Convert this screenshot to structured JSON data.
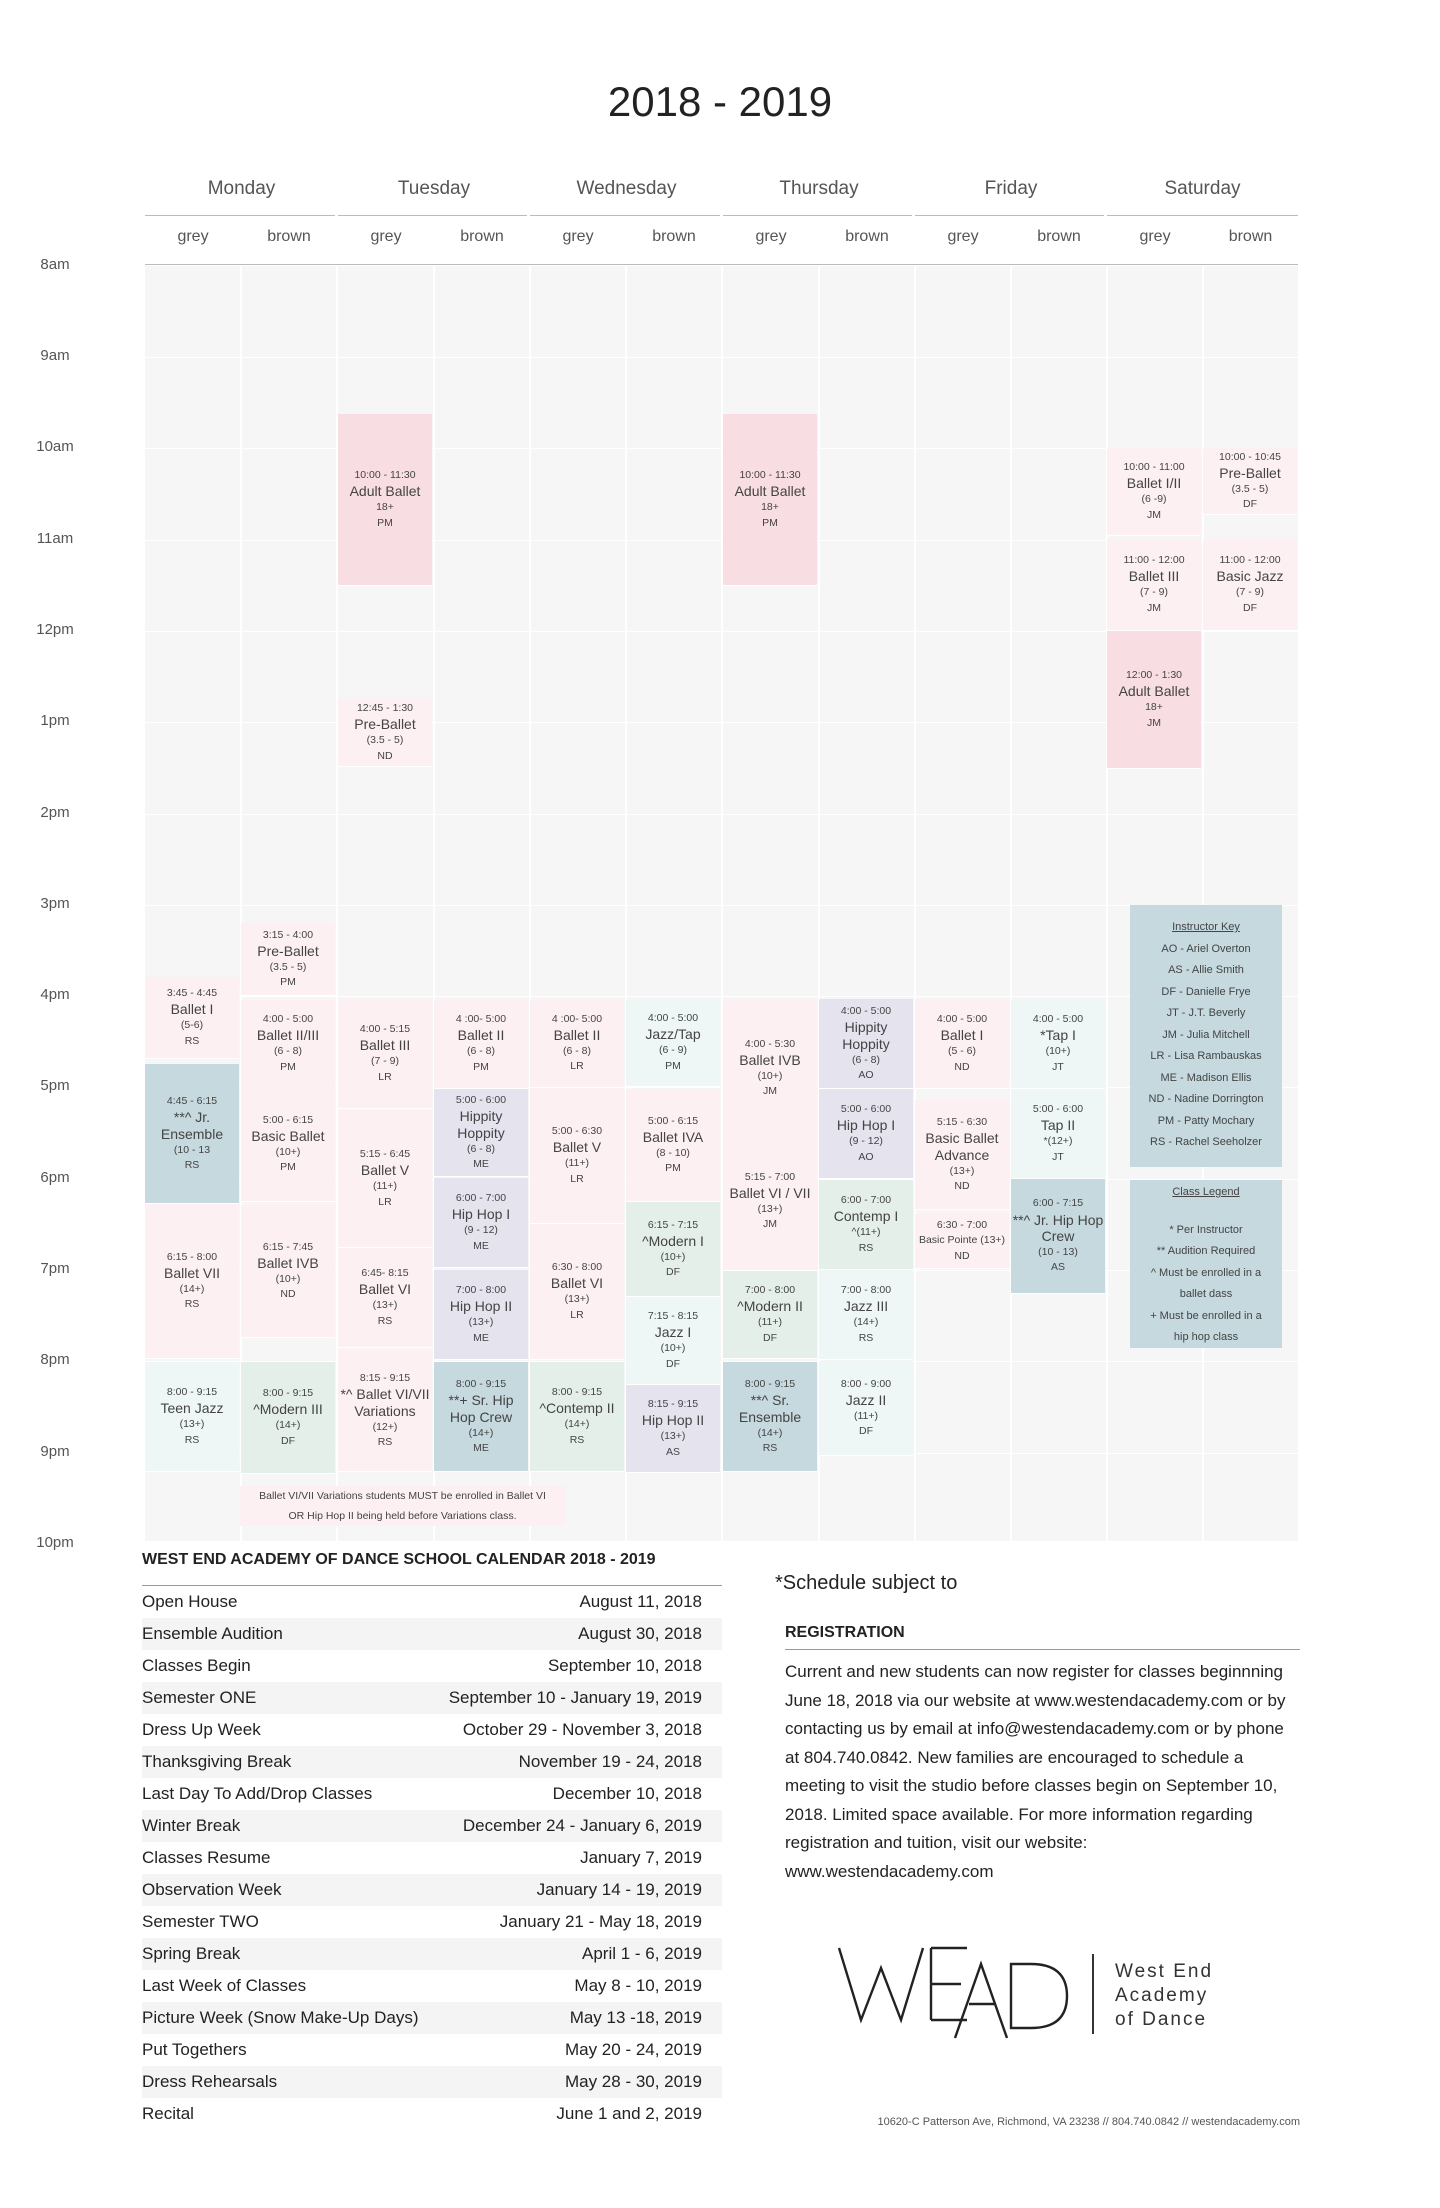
{
  "title": "2018 - 2019",
  "days": [
    "Monday",
    "Tuesday",
    "Wednesday",
    "Thursday",
    "Friday",
    "Saturday"
  ],
  "rooms": [
    "grey",
    "brown"
  ],
  "hours": [
    "8am",
    "9am",
    "10am",
    "11am",
    "12pm",
    "1pm",
    "2pm",
    "3pm",
    "4pm",
    "5pm",
    "6pm",
    "7pm",
    "8pm",
    "9pm",
    "10pm"
  ],
  "classes": [
    {
      "time": "3:45 - 4:45",
      "name": "Ballet I",
      "age": "(5-6)",
      "inst": "RS",
      "color": "#fcf0f2"
    },
    {
      "time": "4:45 - 6:15",
      "name": "**^ Jr. Ensemble",
      "age": "(10 - 13",
      "inst": "RS",
      "color": "#c5d9de"
    },
    {
      "time": "6:15 - 8:00",
      "name": "Ballet VII",
      "age": "(14+)",
      "inst": "RS",
      "color": "#fcf0f2"
    },
    {
      "time": "8:00 - 9:15",
      "name": "Teen Jazz",
      "age": "(13+)",
      "inst": "RS",
      "color": "#eef6f6"
    },
    {
      "time": "3:15 - 4:00",
      "name": "Pre-Ballet",
      "age": "(3.5 - 5)",
      "inst": "PM",
      "color": "#fcf0f2"
    },
    {
      "time": "4:00 - 5:00",
      "name": "Ballet II/III",
      "age": "(6 - 8)",
      "inst": "PM",
      "color": "#fcf0f2"
    },
    {
      "time": "5:00 - 6:15",
      "name": "Basic Ballet",
      "age": "(10+)",
      "inst": "PM",
      "color": "#fcf0f2"
    },
    {
      "time": "6:15 - 7:45",
      "name": "Ballet IVB",
      "age": "(10+)",
      "inst": "ND",
      "color": "#fcf0f2"
    },
    {
      "time": "8:00 - 9:15",
      "name": "^Modern III",
      "age": "(14+)",
      "inst": "DF",
      "color": "#e5efe9"
    },
    {
      "time": "10:00 - 11:30",
      "name": "Adult Ballet",
      "age": "18+",
      "inst": "PM",
      "color": "#f8dde2"
    },
    {
      "time": "12:45 - 1:30",
      "name": "Pre-Ballet",
      "age": "(3.5 - 5)",
      "inst": "ND",
      "color": "#fcf0f2"
    },
    {
      "time": "4:00 - 5:15",
      "name": "Ballet III",
      "age": "(7 - 9)",
      "inst": "LR",
      "color": "#fcf0f2"
    },
    {
      "time": "5:15 - 6:45",
      "name": "Ballet V",
      "age": "(11+)",
      "inst": "LR",
      "color": "#fcf0f2"
    },
    {
      "time": "6:45- 8:15",
      "name": "Ballet VI",
      "age": "(13+)",
      "inst": "RS",
      "color": "#fcf0f2"
    },
    {
      "time": "8:15 - 9:15",
      "name": "*^ Ballet VI/VII Variations",
      "age": "(12+)",
      "inst": "RS",
      "color": "#fcf0f2"
    },
    {
      "time": "4 :00- 5:00",
      "name": "Ballet II",
      "age": "(6 - 8)",
      "inst": "PM",
      "color": "#fcf0f2"
    },
    {
      "time": "5:00 - 6:00",
      "name": "Hippity Hoppity",
      "age": "(6 - 8)",
      "inst": "ME",
      "color": "#e4e3ee"
    },
    {
      "time": "6:00 - 7:00",
      "name": "Hip Hop I",
      "age": "(9 - 12)",
      "inst": "ME",
      "color": "#e4e3ee"
    },
    {
      "time": "7:00 - 8:00",
      "name": "Hip Hop II",
      "age": "(13+)",
      "inst": "ME",
      "color": "#e4e3ee"
    },
    {
      "time": "8:00 - 9:15",
      "name": "**+ Sr. Hip Hop Crew",
      "age": "(14+)",
      "inst": "ME",
      "color": "#c5d9de"
    },
    {
      "time": "4 :00- 5:00",
      "name": "Ballet II",
      "age": "(6 - 8)",
      "inst": "LR",
      "color": "#fcf0f2"
    },
    {
      "time": "5:00 - 6:30",
      "name": "Ballet V",
      "age": "(11+)",
      "inst": "LR",
      "color": "#fcf0f2"
    },
    {
      "time": "6:30 - 8:00",
      "name": "Ballet VI",
      "age": "(13+)",
      "inst": "LR",
      "color": "#fcf0f2"
    },
    {
      "time": "8:00 - 9:15",
      "name": "^Contemp II",
      "age": "(14+)",
      "inst": "RS",
      "color": "#e5efe9"
    },
    {
      "time": "4:00 - 5:00",
      "name": "Jazz/Tap",
      "age": "(6 - 9)",
      "inst": "PM",
      "color": "#eef6f6"
    },
    {
      "time": "5:00 - 6:15",
      "name": "Ballet IVA",
      "age": "(8 - 10)",
      "inst": "PM",
      "color": "#fcf0f2"
    },
    {
      "time": "6:15 - 7:15",
      "name": "^Modern I",
      "age": "(10+)",
      "inst": "DF",
      "color": "#e5efe9"
    },
    {
      "time": "7:15 - 8:15",
      "name": "Jazz I",
      "age": "(10+)",
      "inst": "DF",
      "color": "#eef6f6"
    },
    {
      "time": "8:15 - 9:15",
      "name": "Hip Hop II",
      "age": "(13+)",
      "inst": "AS",
      "color": "#e4e3ee"
    },
    {
      "time": "10:00 - 11:30",
      "name": "Adult Ballet",
      "age": "18+",
      "inst": "PM",
      "color": "#f8dde2"
    },
    {
      "time": "4:00 - 5:30",
      "name": "Ballet IVB",
      "age": "(10+)",
      "inst": "JM",
      "color": "#fcf0f2"
    },
    {
      "time": "5:15 - 7:00",
      "name": "Ballet VI / VII",
      "age": "(13+)",
      "inst": "JM",
      "color": "#fcf0f2"
    },
    {
      "time": "7:00 - 8:00",
      "name": "^Modern II",
      "age": "(11+)",
      "inst": "DF",
      "color": "#e5efe9"
    },
    {
      "time": "8:00 - 9:15",
      "name": "**^ Sr. Ensemble",
      "age": "(14+)",
      "inst": "RS",
      "color": "#c5d9de"
    },
    {
      "time": "4:00 - 5:00",
      "name": "Hippity Hoppity",
      "age": "(6 - 8)",
      "inst": "AO",
      "color": "#e4e3ee"
    },
    {
      "time": "5:00 - 6:00",
      "name": "Hip Hop I",
      "age": "(9 - 12)",
      "inst": "AO",
      "color": "#e4e3ee"
    },
    {
      "time": "6:00 - 7:00",
      "name": "Contemp I",
      "age": "^(11+)",
      "inst": "RS",
      "color": "#e5efe9"
    },
    {
      "time": "7:00 - 8:00",
      "name": "Jazz III",
      "age": "(14+)",
      "inst": "RS",
      "color": "#eef6f6"
    },
    {
      "time": "8:00 - 9:00",
      "name": "Jazz II",
      "age": "(11+)",
      "inst": "DF",
      "color": "#eef6f6"
    },
    {
      "time": "4:00 - 5:00",
      "name": "Ballet I",
      "age": "(5 - 6)",
      "inst": "ND",
      "color": "#fcf0f2"
    },
    {
      "time": "5:15 - 6:30",
      "name": "Basic Ballet Advance",
      "age": "(13+)",
      "inst": "ND",
      "color": "#fcf0f2"
    },
    {
      "time": "6:30 - 7:00",
      "name": "",
      "age": "Basic Pointe (13+)",
      "inst": "ND",
      "color": "#fcf0f2"
    },
    {
      "time": "4:00 - 5:00",
      "name": "*Tap I",
      "age": "(10+)",
      "inst": "JT",
      "color": "#eef6f6"
    },
    {
      "time": "5:00 - 6:00",
      "name": "Tap II",
      "age": "*(12+)",
      "inst": "JT",
      "color": "#eef6f6"
    },
    {
      "time": "6:00 - 7:15",
      "name": "**^ Jr. Hip Hop Crew",
      "age": "(10 - 13)",
      "inst": "AS",
      "color": "#c5d9de"
    },
    {
      "time": "10:00 - 11:00",
      "name": "Ballet I/II",
      "age": "(6 -9)",
      "inst": "JM",
      "color": "#fcf0f2"
    },
    {
      "time": "11:00 - 12:00",
      "name": "Ballet III",
      "age": "(7 - 9)",
      "inst": "JM",
      "color": "#fcf0f2"
    },
    {
      "time": "12:00 - 1:30",
      "name": "Adult Ballet",
      "age": "18+",
      "inst": "JM",
      "color": "#f8dde2"
    },
    {
      "time": "10:00 - 10:45",
      "name": "Pre-Ballet",
      "age": "(3.5 - 5)",
      "inst": "DF",
      "color": "#fcf0f2"
    },
    {
      "time": "11:00 - 12:00",
      "name": "Basic Jazz",
      "age": "(7 - 9)",
      "inst": "DF",
      "color": "#fcf0f2"
    }
  ],
  "variations_note": [
    "Ballet VI/VII Variations students MUST be enrolled in Ballet VI",
    "OR Hip Hop II being held before Variations class."
  ],
  "instructor_key": {
    "heading": "Instructor Key",
    "items": [
      "AO - Ariel Overton",
      "AS - Allie Smith",
      "DF - Danielle Frye",
      "JT - J.T. Beverly",
      "JM - Julia Mitchell",
      "LR - Lisa Rambauskas",
      "ME - Madison Ellis",
      "ND - Nadine Dorrington",
      "PM - Patty Mochary",
      "RS - Rachel Seeholzer"
    ]
  },
  "class_legend": {
    "heading": "Class Legend",
    "items": [
      "* Per Instructor",
      "** Audition Required",
      "^ Must be enrolled in a",
      "ballet dass",
      "+ Must be enrolled in a",
      "hip hop class"
    ]
  },
  "calendar": {
    "heading": "WEST END ACADEMY OF DANCE SCHOOL CALENDAR 2018 - 2019",
    "rows": [
      {
        "event": "Open House",
        "date": "August 11, 2018"
      },
      {
        "event": "Ensemble Audition",
        "date": "August 30, 2018"
      },
      {
        "event": "Classes Begin",
        "date": "September 10, 2018"
      },
      {
        "event": "Semester ONE",
        "date": "September 10 - January 19, 2019"
      },
      {
        "event": "Dress Up Week",
        "date": "October 29 - November 3, 2018"
      },
      {
        "event": "Thanksgiving Break",
        "date": "November 19 - 24, 2018"
      },
      {
        "event": "Last Day To Add/Drop Classes",
        "date": "December 10, 2018"
      },
      {
        "event": "Winter Break",
        "date": "December 24 - January 6, 2019"
      },
      {
        "event": "Classes Resume",
        "date": "January 7, 2019"
      },
      {
        "event": "Observation Week",
        "date": "January 14 - 19, 2019"
      },
      {
        "event": "Semester TWO",
        "date": "January 21 - May 18, 2019"
      },
      {
        "event": "Spring Break",
        "date": "April 1 - 6, 2019"
      },
      {
        "event": "Last Week of Classes",
        "date": "May 8 - 10, 2019"
      },
      {
        "event": "Picture Week (Snow Make-Up Days)",
        "date": "May 13 -18, 2019"
      },
      {
        "event": "Put Togethers",
        "date": "May 20 - 24, 2019"
      },
      {
        "event": "Dress Rehearsals",
        "date": "May 28 - 30, 2019"
      },
      {
        "event": "Recital",
        "date": "June 1 and 2, 2019"
      }
    ]
  },
  "schedule_note": "*Schedule subject to",
  "registration": {
    "heading": "REGISTRATION",
    "text": "Current and new students can now register for classes beginnning June 18, 2018 via our website at www.westendacademy.com or by contacting us by email at info@westendacademy.com or by phone at 804.740.0842. New families are encouraged to schedule a meeting to visit the studio before classes begin on September 10, 2018. Limited space available. For more information regarding registration and tuition, visit our website: www.westendacademy.com"
  },
  "logo": {
    "mark": "WEAD",
    "lines": [
      "West End",
      "Academy",
      "of Dance"
    ]
  },
  "footer": "10620-C Patterson Ave, Richmond, VA 23238  //  804.740.0842  //  westendacademy.com"
}
